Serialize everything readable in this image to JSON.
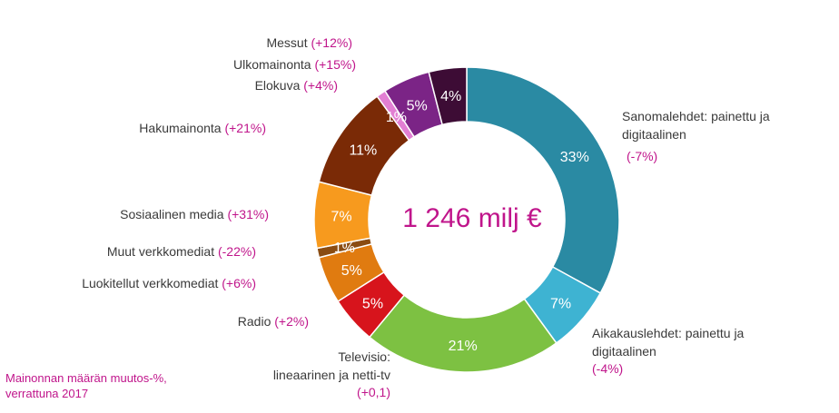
{
  "chart_data": {
    "type": "pie",
    "variant": "donut",
    "center_label": "1 246 milj €",
    "footnote": [
      "Mainonnan määrän muutos-%,",
      "verrattuna 2017"
    ],
    "slices": [
      {
        "name": "Sanomalehdet: painettu ja digitaalinen",
        "label_lines": [
          "Sanomalehdet:  painettu ja",
          "digitaalinen"
        ],
        "change": "(-7%)",
        "value": 33,
        "value_label": "33%",
        "color": "#2a8aa3"
      },
      {
        "name": "Aikakauslehdet: painettu ja digitaalinen",
        "label_lines": [
          "Aikakauslehdet:  painettu ja",
          "digitaalinen"
        ],
        "change": "(-4%)",
        "value": 7,
        "value_label": "7%",
        "color": "#3eb3d2"
      },
      {
        "name": "Televisio: lineaarinen ja netti-tv",
        "label_lines": [
          "Televisio:",
          "lineaarinen ja netti-tv"
        ],
        "change": "(+0,1)",
        "value": 21,
        "value_label": "21%",
        "color": "#7dc142"
      },
      {
        "name": "Radio",
        "label_lines": [
          "Radio"
        ],
        "change": "(+2%)",
        "value": 5,
        "value_label": "5%",
        "color": "#d7141c"
      },
      {
        "name": "Luokitellut verkkomediat",
        "label_lines": [
          "Luokitellut verkkomediat"
        ],
        "change": "(+6%)",
        "value": 5,
        "value_label": "5%",
        "color": "#e07b10"
      },
      {
        "name": "Muut verkkomediat",
        "label_lines": [
          "Muut verkkomediat"
        ],
        "change": "(-22%)",
        "value": 1,
        "value_label": "1%",
        "color": "#8a4c12"
      },
      {
        "name": "Sosiaalinen media",
        "label_lines": [
          "Sosiaalinen media"
        ],
        "change": "(+31%)",
        "value": 7,
        "value_label": "7%",
        "color": "#f79a1e"
      },
      {
        "name": "Hakumainonta",
        "label_lines": [
          "Hakumainonta"
        ],
        "change": "(+21%)",
        "value": 11,
        "value_label": "11%",
        "color": "#7a2a06"
      },
      {
        "name": "Elokuva",
        "label_lines": [
          "Elokuva"
        ],
        "change": "(+4%)",
        "value": 1,
        "value_label": "1%",
        "color": "#e27fd3"
      },
      {
        "name": "Ulkomainonta",
        "label_lines": [
          "Ulkomainonta"
        ],
        "change": "(+15%)",
        "value": 5,
        "value_label": "5%",
        "color": "#7b2486"
      },
      {
        "name": "Messut",
        "label_lines": [
          "Messut"
        ],
        "change": "(+12%)",
        "value": 4,
        "value_label": "4%",
        "color": "#3d0c35"
      }
    ]
  }
}
